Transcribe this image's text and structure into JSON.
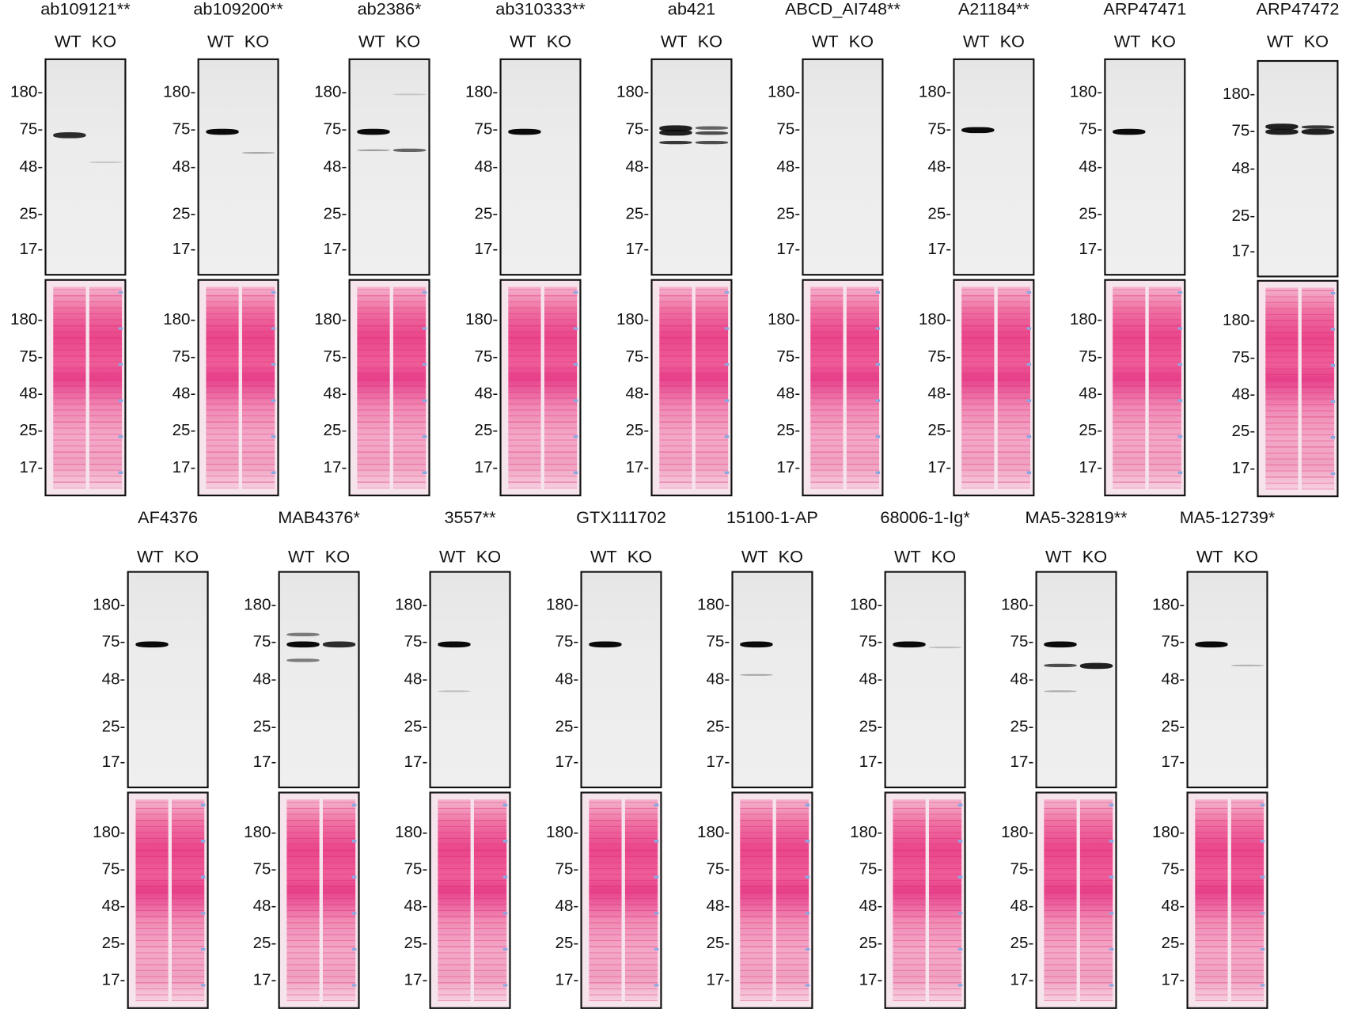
{
  "lane_labels": [
    "WT",
    "KO"
  ],
  "markers": [
    "180",
    "75",
    "48",
    "25",
    "17"
  ],
  "colors": {
    "band": "#111111",
    "ponceau": "#e9468a",
    "membrane": "#ebebeb"
  },
  "antibodies": [
    {
      "name": "ab109121**",
      "bands": [
        {
          "lane": 0,
          "kDa": 72,
          "s": 0.85
        },
        {
          "lane": 1,
          "kDa": 52,
          "s": 0.15
        }
      ]
    },
    {
      "name": "ab109200**",
      "bands": [
        {
          "lane": 0,
          "kDa": 75,
          "s": 1
        },
        {
          "lane": 1,
          "kDa": 58,
          "s": 0.3
        }
      ]
    },
    {
      "name": "ab2386*",
      "bands": [
        {
          "lane": 0,
          "kDa": 75,
          "s": 1
        },
        {
          "lane": 0,
          "kDa": 60,
          "s": 0.35
        },
        {
          "lane": 1,
          "kDa": 60,
          "s": 0.6
        },
        {
          "lane": 1,
          "kDa": 180,
          "s": 0.15
        }
      ]
    },
    {
      "name": "ab310333**",
      "bands": [
        {
          "lane": 0,
          "kDa": 75,
          "s": 1
        }
      ]
    },
    {
      "name": "ab421",
      "bands": [
        {
          "lane": 0,
          "kDa": 82,
          "s": 0.9
        },
        {
          "lane": 0,
          "kDa": 74,
          "s": 0.9
        },
        {
          "lane": 0,
          "kDa": 66,
          "s": 0.8
        },
        {
          "lane": 1,
          "kDa": 82,
          "s": 0.6
        },
        {
          "lane": 1,
          "kDa": 74,
          "s": 0.7
        },
        {
          "lane": 1,
          "kDa": 66,
          "s": 0.7
        }
      ]
    },
    {
      "name": "ABCD_AI748**",
      "bands": []
    },
    {
      "name": "A21184**",
      "bands": [
        {
          "lane": 0,
          "kDa": 78,
          "s": 1
        }
      ]
    },
    {
      "name": "ARP47471",
      "bands": [
        {
          "lane": 0,
          "kDa": 75,
          "s": 1
        }
      ]
    },
    {
      "name": "ARP47472",
      "bands": [
        {
          "lane": 0,
          "kDa": 88,
          "s": 0.9
        },
        {
          "lane": 0,
          "kDa": 78,
          "s": 0.9
        },
        {
          "lane": 1,
          "kDa": 88,
          "s": 0.8
        },
        {
          "lane": 1,
          "kDa": 78,
          "s": 0.9
        }
      ]
    },
    {
      "name": "AF4376",
      "bands": [
        {
          "lane": 0,
          "kDa": 75,
          "s": 1
        }
      ]
    },
    {
      "name": "MAB4376*",
      "bands": [
        {
          "lane": 0,
          "kDa": 75,
          "s": 1
        },
        {
          "lane": 0,
          "kDa": 95,
          "s": 0.5
        },
        {
          "lane": 0,
          "kDa": 62,
          "s": 0.5
        },
        {
          "lane": 1,
          "kDa": 75,
          "s": 0.85
        }
      ]
    },
    {
      "name": "3557**",
      "bands": [
        {
          "lane": 0,
          "kDa": 75,
          "s": 1
        },
        {
          "lane": 0,
          "kDa": 42,
          "s": 0.2
        }
      ]
    },
    {
      "name": "GTX111702",
      "bands": [
        {
          "lane": 0,
          "kDa": 75,
          "s": 1
        }
      ]
    },
    {
      "name": "15100-1-AP",
      "bands": [
        {
          "lane": 0,
          "kDa": 75,
          "s": 1
        },
        {
          "lane": 0,
          "kDa": 52,
          "s": 0.3
        }
      ]
    },
    {
      "name": "68006-1-Ig*",
      "bands": [
        {
          "lane": 0,
          "kDa": 75,
          "s": 1
        },
        {
          "lane": 1,
          "kDa": 72,
          "s": 0.2
        }
      ]
    },
    {
      "name": "MA5-32819**",
      "bands": [
        {
          "lane": 0,
          "kDa": 75,
          "s": 1
        },
        {
          "lane": 0,
          "kDa": 58,
          "s": 0.7
        },
        {
          "lane": 1,
          "kDa": 58,
          "s": 0.9
        },
        {
          "lane": 0,
          "kDa": 42,
          "s": 0.3
        }
      ]
    },
    {
      "name": "MA5-12739*",
      "bands": [
        {
          "lane": 0,
          "kDa": 75,
          "s": 1
        },
        {
          "lane": 1,
          "kDa": 58,
          "s": 0.25
        }
      ]
    }
  ]
}
